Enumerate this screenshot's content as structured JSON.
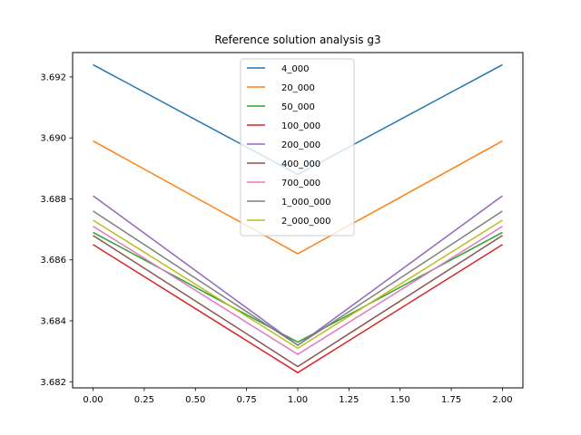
{
  "chart_data": {
    "type": "line",
    "title": "Reference solution analysis g3",
    "xlabel": "",
    "ylabel": "",
    "x": [
      0.0,
      1.0,
      2.0
    ],
    "xlim": [
      -0.1,
      2.1
    ],
    "ylim": [
      3.6818,
      3.6928
    ],
    "xticks": [
      0.0,
      0.25,
      0.5,
      0.75,
      1.0,
      1.25,
      1.5,
      1.75,
      2.0
    ],
    "xtick_labels": [
      "0.00",
      "0.25",
      "0.50",
      "0.75",
      "1.00",
      "1.25",
      "1.50",
      "1.75",
      "2.00"
    ],
    "yticks": [
      3.682,
      3.684,
      3.686,
      3.688,
      3.69,
      3.692
    ],
    "ytick_labels": [
      "3.682",
      "3.684",
      "3.686",
      "3.688",
      "3.690",
      "3.692"
    ],
    "grid": false,
    "legend_position": "top-center",
    "series": [
      {
        "name": "4_000",
        "color": "#1f77b4",
        "values": [
          3.6924,
          3.6888,
          3.6924
        ]
      },
      {
        "name": "20_000",
        "color": "#ff7f0e",
        "values": [
          3.6899,
          3.6862,
          3.6899
        ]
      },
      {
        "name": "50_000",
        "color": "#2ca02c",
        "values": [
          3.6869,
          3.6833,
          3.6869
        ]
      },
      {
        "name": "100_000",
        "color": "#d62728",
        "values": [
          3.6865,
          3.6823,
          3.6865
        ]
      },
      {
        "name": "200_000",
        "color": "#9467bd",
        "values": [
          3.6881,
          3.6832,
          3.6881
        ]
      },
      {
        "name": "400_000",
        "color": "#8c564b",
        "values": [
          3.6868,
          3.6825,
          3.6868
        ]
      },
      {
        "name": "700_000",
        "color": "#e377c2",
        "values": [
          3.6871,
          3.6829,
          3.6871
        ]
      },
      {
        "name": "1_000_000",
        "color": "#7f7f7f",
        "values": [
          3.6876,
          3.6832,
          3.6876
        ]
      },
      {
        "name": "2_000_000",
        "color": "#bcbd22",
        "values": [
          3.6873,
          3.6831,
          3.6873
        ]
      }
    ]
  }
}
